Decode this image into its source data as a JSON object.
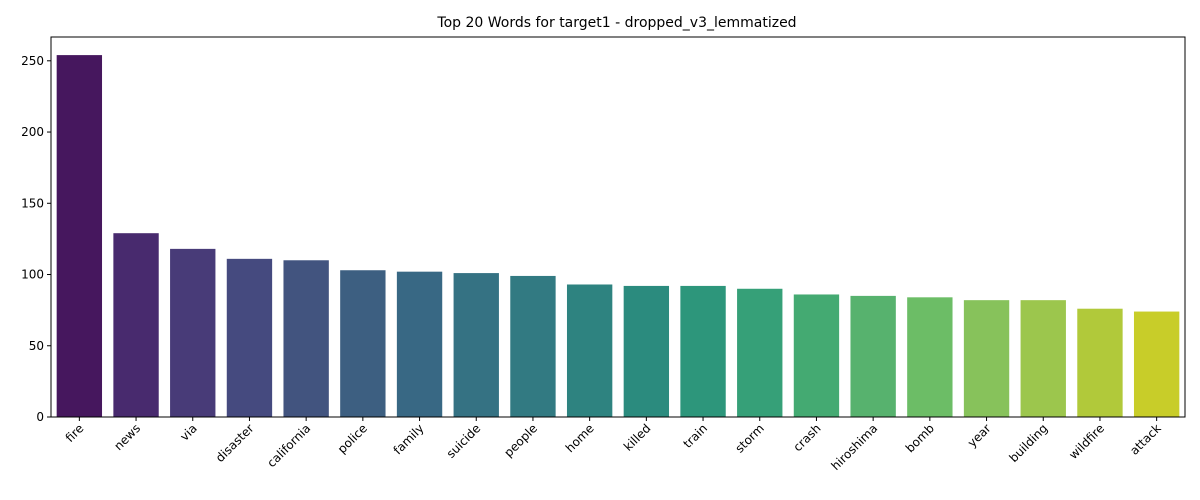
{
  "chart_data": {
    "type": "bar",
    "title": "Top 20 Words for target1 - dropped_v3_lemmatized",
    "xlabel": "",
    "ylabel": "",
    "categories": [
      "fire",
      "news",
      "via",
      "disaster",
      "california",
      "police",
      "family",
      "suicide",
      "people",
      "home",
      "killed",
      "train",
      "storm",
      "crash",
      "hiroshima",
      "bomb",
      "year",
      "building",
      "wildfire",
      "attack"
    ],
    "values": [
      254,
      129,
      118,
      111,
      110,
      103,
      102,
      101,
      99,
      93,
      92,
      92,
      90,
      86,
      85,
      84,
      82,
      82,
      76,
      74
    ],
    "colors": [
      "#46175e",
      "#482a6e",
      "#483b78",
      "#454a7f",
      "#42547f",
      "#3d5f81",
      "#386884",
      "#357283",
      "#327a82",
      "#2e8380",
      "#2b8b7e",
      "#2d967b",
      "#36a078",
      "#44aa72",
      "#57b26e",
      "#6cbd66",
      "#87c25b",
      "#9cc64d",
      "#b1c93a",
      "#c8cd29"
    ],
    "yticks": [
      0,
      50,
      100,
      150,
      200,
      250
    ],
    "ylim": [
      0,
      266.7
    ],
    "grid": false,
    "legend": "none"
  }
}
